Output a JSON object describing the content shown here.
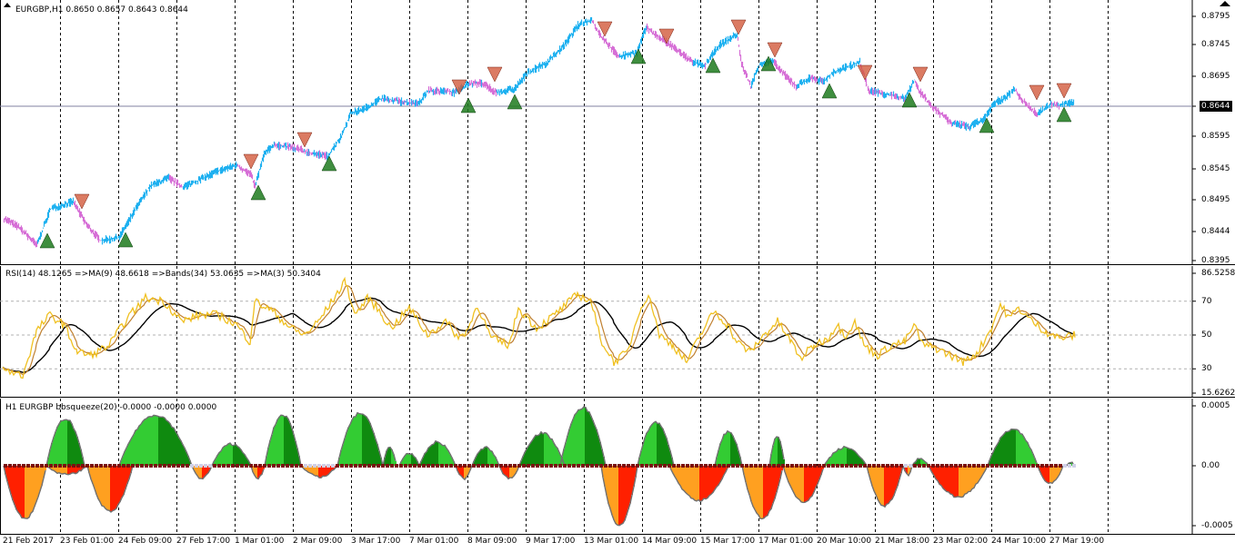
{
  "colors": {
    "bull": "#1fb1f0",
    "bear": "#d66fd6",
    "rsi": "#f0c020",
    "ma": "#c08030",
    "bands": "#000000",
    "hist_up_dark": "#0f8a0f",
    "hist_up_light": "#33cc33",
    "hist_dn_red": "#ff2000",
    "hist_dn_orange": "#ffa020",
    "grid": "#000000",
    "arrow_sell": "#d25a3c",
    "arrow_buy": "#1d7a1d"
  },
  "chart": {
    "symbol_header": "EURGBP,H1  0.8650 0.8657 0.8643 0.8644",
    "price_ticks": [
      "0.8795",
      "0.8745",
      "0.8695",
      "0.8644",
      "0.8595",
      "0.8545",
      "0.8495",
      "0.8444",
      "0.8395"
    ],
    "current_price": "0.8644",
    "time_ticks": [
      "21 Feb 2017",
      "23 Feb 01:00",
      "24 Feb 09:00",
      "27 Feb 17:00",
      "1 Mar 01:00",
      "2 Mar 09:00",
      "3 Mar 17:00",
      "7 Mar 01:00",
      "8 Mar 09:00",
      "9 Mar 17:00",
      "13 Mar 01:00",
      "14 Mar 09:00",
      "15 Mar 17:00",
      "17 Mar 01:00",
      "20 Mar 10:00",
      "21 Mar 18:00",
      "23 Mar 02:00",
      "24 Mar 10:00",
      "27 Mar 19:00"
    ]
  },
  "rsi_pane": {
    "header": "RSI(14) 48.1265  =>MA(9) 48.6618  =>Bands(34) 53.0635  =>MA(3) 50.3404",
    "ticks": [
      "86.5258",
      "70",
      "50",
      "30",
      "15.6262"
    ]
  },
  "squeeze_pane": {
    "header": "H1 EURGBP bbsqueeze(20) -0.0000 -0.0000 0.0000",
    "ticks": [
      "0.0005",
      "0.00",
      "-0.0005"
    ]
  },
  "chart_data": {
    "type": "line",
    "title": "EURGBP,H1",
    "x": [
      "21 Feb 2017",
      "23 Feb 01:00",
      "24 Feb 09:00",
      "27 Feb 17:00",
      "1 Mar 01:00",
      "2 Mar 09:00",
      "3 Mar 17:00",
      "7 Mar 01:00",
      "8 Mar 09:00",
      "9 Mar 17:00",
      "13 Mar 01:00",
      "14 Mar 09:00",
      "15 Mar 17:00",
      "17 Mar 01:00",
      "20 Mar 10:00",
      "21 Mar 18:00",
      "23 Mar 02:00",
      "24 Mar 10:00",
      "27 Mar 19:00"
    ],
    "series": [
      {
        "name": "EURGBP",
        "values": [
          0.844,
          0.8485,
          0.847,
          0.852,
          0.859,
          0.857,
          0.862,
          0.865,
          0.868,
          0.873,
          0.879,
          0.874,
          0.871,
          0.872,
          0.87,
          0.866,
          0.862,
          0.867,
          0.8644
        ]
      }
    ],
    "ylim": [
      0.8395,
      0.8795
    ]
  }
}
